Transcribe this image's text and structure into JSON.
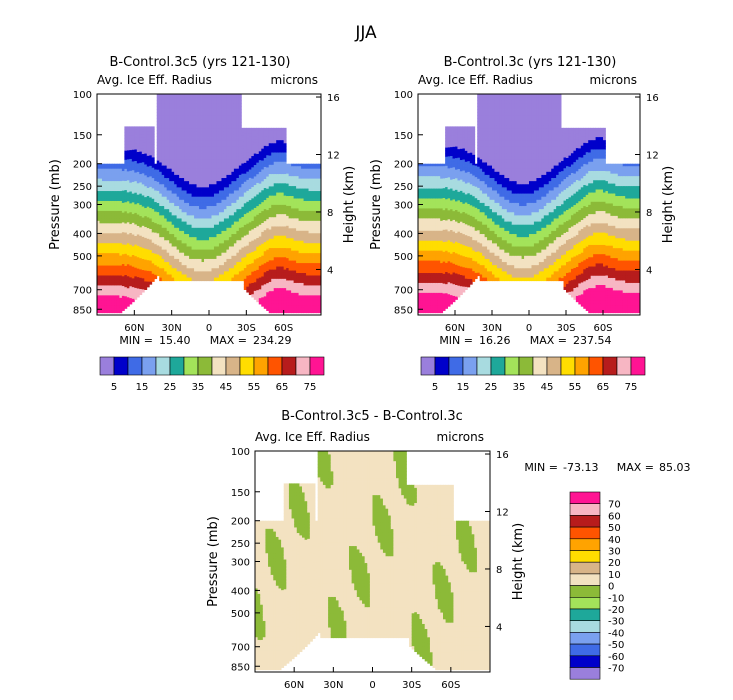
{
  "figure": {
    "season": "JJA"
  },
  "chart_data": [
    {
      "type": "heatmap",
      "id": "left",
      "title": "B-Control.3c5 (yrs 121-130)",
      "variable": "Avg. Ice Eff. Radius",
      "units": "microns",
      "ylabel": "Pressure (mb)",
      "y2label": "Height (km)",
      "y_ticks": [
        100,
        150,
        200,
        250,
        300,
        400,
        500,
        700,
        850
      ],
      "y2_ticks": [
        16,
        12,
        8,
        4
      ],
      "x_ticks": [
        "60N",
        "30N",
        "0",
        "30S",
        "60S"
      ],
      "x_tick_lats": [
        60,
        30,
        0,
        -30,
        -60
      ],
      "xlim": [
        90,
        -90
      ],
      "ylim": [
        100,
        900
      ],
      "min_label": "MIN =",
      "min_value": "15.40",
      "max_label": "MAX =",
      "max_value": "234.29",
      "levels": [
        5,
        10,
        15,
        20,
        25,
        30,
        35,
        40,
        45,
        50,
        55,
        60,
        65,
        70,
        75
      ],
      "colorbar_labels": [
        "5",
        "15",
        "25",
        "35",
        "45",
        "55",
        "65",
        "75"
      ]
    },
    {
      "type": "heatmap",
      "id": "right",
      "title": "B-Control.3c (yrs 121-130)",
      "variable": "Avg. Ice Eff. Radius",
      "units": "microns",
      "ylabel": "Pressure (mb)",
      "y2label": "Height (km)",
      "y_ticks": [
        100,
        150,
        200,
        250,
        300,
        400,
        500,
        700,
        850
      ],
      "y2_ticks": [
        16,
        12,
        8,
        4
      ],
      "x_ticks": [
        "60N",
        "30N",
        "0",
        "30S",
        "60S"
      ],
      "x_tick_lats": [
        60,
        30,
        0,
        -30,
        -60
      ],
      "xlim": [
        90,
        -90
      ],
      "ylim": [
        100,
        900
      ],
      "min_label": "MIN =",
      "min_value": "16.26",
      "max_label": "MAX =",
      "max_value": "237.54",
      "levels": [
        5,
        10,
        15,
        20,
        25,
        30,
        35,
        40,
        45,
        50,
        55,
        60,
        65,
        70,
        75
      ],
      "colorbar_labels": [
        "5",
        "15",
        "25",
        "35",
        "45",
        "55",
        "65",
        "75"
      ]
    },
    {
      "type": "heatmap",
      "id": "diff",
      "title": "B-Control.3c5 - B-Control.3c",
      "variable": "Avg. Ice Eff. Radius",
      "units": "microns",
      "ylabel": "Pressure (mb)",
      "y2label": "Height (km)",
      "y_ticks": [
        100,
        150,
        200,
        250,
        300,
        400,
        500,
        700,
        850
      ],
      "y2_ticks": [
        16,
        12,
        8,
        4
      ],
      "x_ticks": [
        "60N",
        "30N",
        "0",
        "30S",
        "60S"
      ],
      "x_tick_lats": [
        60,
        30,
        0,
        -30,
        -60
      ],
      "xlim": [
        90,
        -90
      ],
      "ylim": [
        100,
        900
      ],
      "min_label": "MIN =",
      "min_value": "-73.13",
      "max_label": "MAX =",
      "max_value": "85.03",
      "levels": [
        -70,
        -60,
        -50,
        -40,
        -30,
        -20,
        -10,
        0,
        10,
        20,
        30,
        40,
        50,
        60,
        70
      ],
      "colorbar_labels": [
        "70",
        "60",
        "50",
        "40",
        "30",
        "20",
        "10",
        "0",
        "-10",
        "-20",
        "-30",
        "-40",
        "-50",
        "-60",
        "-70"
      ]
    }
  ],
  "colors": {
    "mean_palette": [
      "#9a7fdc",
      "#0000ca",
      "#3f6be6",
      "#7aa0ef",
      "#a8dbe0",
      "#1ea89a",
      "#a3e35a",
      "#8cba38",
      "#f3e2c1",
      "#d8b488",
      "#ffdd00",
      "#ffa300",
      "#ff5400",
      "#b71c1c",
      "#f7b6c3",
      "#ff1493"
    ],
    "diff_palette": [
      "#9a7fdc",
      "#0000ca",
      "#3f6be6",
      "#7aa0ef",
      "#a8dbe0",
      "#1ea89a",
      "#a3e35a",
      "#8cba38",
      "#f3e2c1",
      "#d8b488",
      "#ffdd00",
      "#ffa300",
      "#ff5400",
      "#b71c1c",
      "#f7b6c3",
      "#ff1493"
    ]
  }
}
